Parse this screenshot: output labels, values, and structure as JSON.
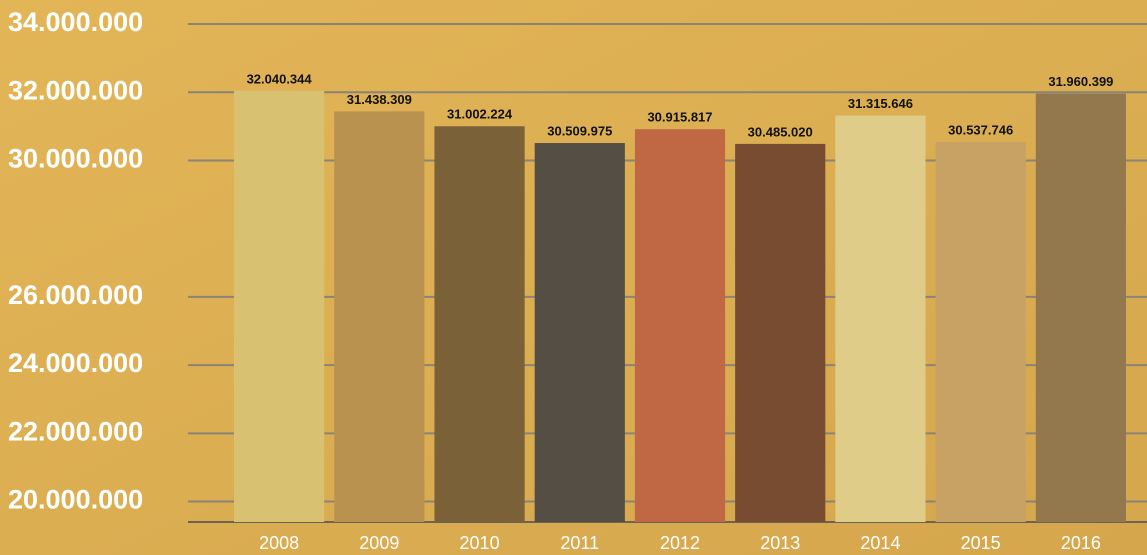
{
  "chart_data": {
    "type": "bar",
    "categories": [
      "2008",
      "2009",
      "2010",
      "2011",
      "2012",
      "2013",
      "2014",
      "2015",
      "2016"
    ],
    "values": [
      32040344,
      31438309,
      31002224,
      30509975,
      30915817,
      30485020,
      31315646,
      30537746,
      31960399
    ],
    "value_labels": [
      "32.040.344",
      "31.438.309",
      "31.002.224",
      "30.509.975",
      "30.915.817",
      "30.485.020",
      "31.315.646",
      "30.537.746",
      "31.960.399"
    ],
    "colors": [
      "#d8c271",
      "#ba9250",
      "#7b6137",
      "#554e44",
      "#c06844",
      "#784c30",
      "#dfcc88",
      "#c7a264",
      "#94784d"
    ],
    "ylim": [
      19400000,
      34000000
    ],
    "yticks": [
      {
        "value": 34000000,
        "label": "34.000.000"
      },
      {
        "value": 32000000,
        "label": "32.000.000"
      },
      {
        "value": 30000000,
        "label": "30.000.000"
      },
      {
        "value": 26000000,
        "label": "26.000.000"
      },
      {
        "value": 24000000,
        "label": "24.000.000"
      },
      {
        "value": 22000000,
        "label": "22.000.000"
      },
      {
        "value": 20000000,
        "label": "20.000.000"
      }
    ],
    "grid": true
  }
}
